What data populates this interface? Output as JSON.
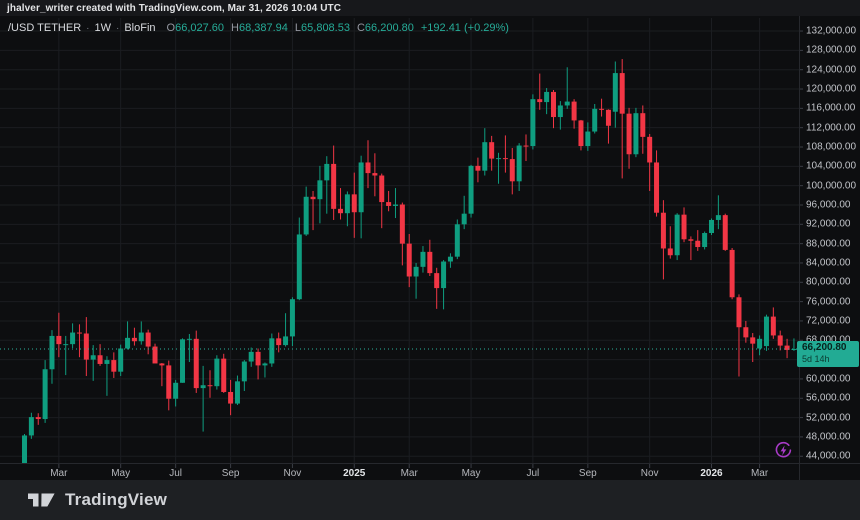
{
  "attribution": {
    "text": "jhalver_writer created with TradingView.com, Mar 31, 2026 10:04 UTC"
  },
  "header": {
    "symbol": "/USD TETHER",
    "separator": "·",
    "interval": "1W",
    "exchange": "BloFin",
    "o_label": "O",
    "o_value": "66,027.60",
    "h_label": "H",
    "h_value": "68,387.94",
    "l_label": "L",
    "l_value": "65,808.53",
    "c_label": "C",
    "c_value": "66,200.80",
    "change": "+192.41 (+0.29%)"
  },
  "footer": {
    "brand": "TradingView"
  },
  "colors": {
    "up": "#0f9e80",
    "down": "#f23645",
    "grid": "#1b1d21",
    "axis_line": "#26282d",
    "tick": "#3a3d45",
    "price_line": "#2bb39b",
    "label_bg": "#22ab94",
    "purple": "#a83bc7"
  },
  "chart_data": {
    "type": "candlestick",
    "title": "/USD TETHER · 1W · BloFin",
    "symbol": "/USD TETHER",
    "interval": "1W",
    "exchange": "BloFin",
    "grid": true,
    "current_ohlc": {
      "open": 66027.6,
      "high": 68387.94,
      "low": 65808.53,
      "close": 66200.8,
      "change": 192.41,
      "change_pct": 0.29
    },
    "last_price": {
      "value": 66200.8,
      "label": "66,200.80",
      "countdown": "5d 14h"
    },
    "y_axis": {
      "min": 42600,
      "max": 134700,
      "tick_values": [
        132000,
        128000,
        124000,
        120000,
        116000,
        112000,
        108000,
        104000,
        100000,
        96000,
        92000,
        88000,
        84000,
        80000,
        76000,
        72000,
        68000,
        64000,
        60000,
        56000,
        52000,
        48000,
        44000
      ]
    },
    "x_axis": {
      "labels": [
        {
          "label": "Mar",
          "index": 5,
          "year": false
        },
        {
          "label": "May",
          "index": 14,
          "year": false
        },
        {
          "label": "Jul",
          "index": 22,
          "year": false
        },
        {
          "label": "Sep",
          "index": 30,
          "year": false
        },
        {
          "label": "Nov",
          "index": 39,
          "year": false
        },
        {
          "label": "2025",
          "index": 48,
          "year": true
        },
        {
          "label": "Mar",
          "index": 56,
          "year": false
        },
        {
          "label": "May",
          "index": 65,
          "year": false
        },
        {
          "label": "Jul",
          "index": 74,
          "year": false
        },
        {
          "label": "Sep",
          "index": 82,
          "year": false
        },
        {
          "label": "Nov",
          "index": 91,
          "year": false
        },
        {
          "label": "2026",
          "index": 100,
          "year": true
        },
        {
          "label": "Mar",
          "index": 107,
          "year": false
        }
      ]
    },
    "candles": [
      [
        42600,
        48600,
        42600,
        48300
      ],
      [
        48300,
        53000,
        47600,
        52100
      ],
      [
        52100,
        52900,
        50500,
        51700
      ],
      [
        51700,
        63900,
        50900,
        62000
      ],
      [
        62000,
        70100,
        59000,
        68900
      ],
      [
        68900,
        73700,
        64500,
        67200
      ],
      [
        67200,
        68900,
        60800,
        67200
      ],
      [
        67200,
        71500,
        66400,
        69600
      ],
      [
        69600,
        71300,
        64500,
        69400
      ],
      [
        69400,
        72800,
        60600,
        64000
      ],
      [
        64000,
        67000,
        59600,
        64900
      ],
      [
        64900,
        67200,
        62700,
        63100
      ],
      [
        63100,
        64700,
        56500,
        63900
      ],
      [
        63900,
        65500,
        60200,
        61500
      ],
      [
        61500,
        67100,
        60600,
        66300
      ],
      [
        66300,
        71900,
        66100,
        68500
      ],
      [
        68500,
        70600,
        66900,
        67800
      ],
      [
        67800,
        71900,
        67100,
        69600
      ],
      [
        69600,
        70200,
        65100,
        66700
      ],
      [
        66700,
        67300,
        63400,
        63200
      ],
      [
        63200,
        63300,
        58500,
        62800
      ],
      [
        62800,
        63800,
        53500,
        55900
      ],
      [
        55900,
        59800,
        54300,
        59200
      ],
      [
        59200,
        68400,
        59200,
        68200
      ],
      [
        68200,
        69300,
        63500,
        68300
      ],
      [
        68300,
        70000,
        57100,
        58100
      ],
      [
        58100,
        62700,
        49100,
        58700
      ],
      [
        58700,
        61800,
        56100,
        58500
      ],
      [
        58500,
        64900,
        57800,
        64200
      ],
      [
        64200,
        65200,
        57100,
        57300
      ],
      [
        57300,
        59800,
        52500,
        54900
      ],
      [
        54900,
        60700,
        54600,
        59500
      ],
      [
        59500,
        63900,
        57500,
        63600
      ],
      [
        63600,
        66500,
        62500,
        65600
      ],
      [
        65600,
        66300,
        59900,
        62800
      ],
      [
        62800,
        63400,
        60300,
        63200
      ],
      [
        63200,
        69400,
        62500,
        68400
      ],
      [
        68400,
        69600,
        65500,
        67000
      ],
      [
        67000,
        73600,
        66700,
        68800
      ],
      [
        68800,
        76900,
        66800,
        76500
      ],
      [
        76500,
        93400,
        76300,
        89900
      ],
      [
        89900,
        99800,
        89600,
        97700
      ],
      [
        97700,
        98900,
        90800,
        97200
      ],
      [
        97200,
        104100,
        92200,
        101100
      ],
      [
        101100,
        106100,
        94200,
        104500
      ],
      [
        104500,
        108300,
        92900,
        95200
      ],
      [
        95200,
        99500,
        93000,
        94300
      ],
      [
        94300,
        98800,
        91600,
        98200
      ],
      [
        98200,
        102700,
        89200,
        94500
      ],
      [
        94500,
        106200,
        89100,
        104800
      ],
      [
        104800,
        109400,
        99500,
        102600
      ],
      [
        102600,
        106700,
        97800,
        102100
      ],
      [
        102100,
        102500,
        91200,
        96600
      ],
      [
        96600,
        98900,
        94700,
        95800
      ],
      [
        95800,
        99500,
        93300,
        96100
      ],
      [
        96100,
        96500,
        83500,
        88000
      ],
      [
        88000,
        90000,
        79000,
        81200
      ],
      [
        81200,
        84000,
        76600,
        83200
      ],
      [
        83200,
        87500,
        82000,
        86300
      ],
      [
        86300,
        88800,
        81300,
        81900
      ],
      [
        81900,
        83000,
        74500,
        78800
      ],
      [
        78800,
        84600,
        74400,
        84300
      ],
      [
        84300,
        86000,
        83000,
        85300
      ],
      [
        85300,
        93000,
        84800,
        92000
      ],
      [
        92000,
        97900,
        91000,
        94200
      ],
      [
        94200,
        104300,
        93400,
        104100
      ],
      [
        104100,
        105800,
        100700,
        103100
      ],
      [
        103100,
        111900,
        102100,
        109000
      ],
      [
        109000,
        110300,
        103100,
        105600
      ],
      [
        105600,
        106800,
        100400,
        105700
      ],
      [
        105700,
        110400,
        102700,
        105500
      ],
      [
        105500,
        107800,
        98200,
        100900
      ],
      [
        100900,
        108800,
        98900,
        108300
      ],
      [
        108300,
        110600,
        105100,
        108200
      ],
      [
        108200,
        118900,
        107500,
        117900
      ],
      [
        117900,
        123200,
        115700,
        117300
      ],
      [
        117300,
        120200,
        114800,
        119400
      ],
      [
        119400,
        119800,
        111900,
        114200
      ],
      [
        114200,
        117500,
        111600,
        116600
      ],
      [
        116600,
        124500,
        115900,
        117400
      ],
      [
        117400,
        117900,
        111800,
        113500
      ],
      [
        113500,
        113600,
        107300,
        108200
      ],
      [
        108200,
        113100,
        107200,
        111200
      ],
      [
        111200,
        116900,
        110800,
        115900
      ],
      [
        115900,
        118000,
        114300,
        115700
      ],
      [
        115700,
        115800,
        108700,
        112400
      ],
      [
        115300,
        125700,
        112000,
        123300
      ],
      [
        123300,
        126200,
        101500,
        114900
      ],
      [
        114900,
        116100,
        103500,
        106500
      ],
      [
        106500,
        116100,
        105900,
        115000
      ],
      [
        115000,
        116600,
        106600,
        110100
      ],
      [
        110100,
        110700,
        98900,
        104800
      ],
      [
        104800,
        107300,
        93600,
        94400
      ],
      [
        94400,
        97000,
        80600,
        87000
      ],
      [
        87000,
        91600,
        84900,
        85600
      ],
      [
        85600,
        94300,
        84600,
        94000
      ],
      [
        94000,
        95500,
        88300,
        88900
      ],
      [
        88900,
        89500,
        84600,
        88600
      ],
      [
        88600,
        90800,
        86500,
        87300
      ],
      [
        87300,
        90500,
        86800,
        90200
      ],
      [
        90200,
        93200,
        89800,
        92900
      ],
      [
        92900,
        98000,
        91000,
        93900
      ],
      [
        93900,
        94200,
        86500,
        86700
      ],
      [
        86700,
        87100,
        76500,
        76900
      ],
      [
        76900,
        77500,
        60500,
        70700
      ],
      [
        70700,
        72000,
        67500,
        68600
      ],
      [
        68600,
        69500,
        63500,
        67300
      ],
      [
        66300,
        69000,
        64900,
        68300
      ],
      [
        66800,
        73300,
        65800,
        72900
      ],
      [
        72900,
        74800,
        68300,
        69000
      ],
      [
        69000,
        70000,
        65900,
        66900
      ],
      [
        66900,
        68300,
        64300,
        66000
      ],
      [
        66027.6,
        68387.94,
        65808.53,
        66200.8
      ]
    ]
  }
}
